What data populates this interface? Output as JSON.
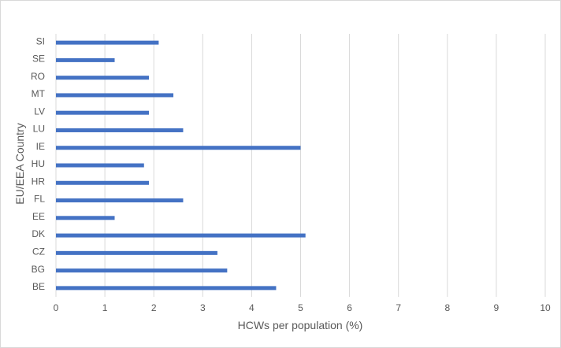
{
  "chart_data": {
    "type": "bar",
    "orientation": "horizontal",
    "categories": [
      "BE",
      "BG",
      "CZ",
      "DK",
      "EE",
      "FL",
      "HR",
      "HU",
      "IE",
      "LU",
      "LV",
      "MT",
      "RO",
      "SE",
      "SI"
    ],
    "values": [
      4.5,
      3.5,
      3.3,
      5.1,
      1.2,
      2.6,
      1.9,
      1.8,
      5.0,
      2.6,
      1.9,
      2.4,
      1.9,
      1.2,
      2.1
    ],
    "xlabel": "HCWs per population (%)",
    "ylabel": "EU/EEA Country",
    "xlim": [
      0,
      10
    ],
    "xticks": [
      "0",
      "1",
      "2",
      "3",
      "4",
      "5",
      "6",
      "7",
      "8",
      "9",
      "10"
    ],
    "grid": "vertical",
    "legend": "none",
    "bar_color": "#4472c4",
    "grid_color": "#d9d9d9"
  }
}
